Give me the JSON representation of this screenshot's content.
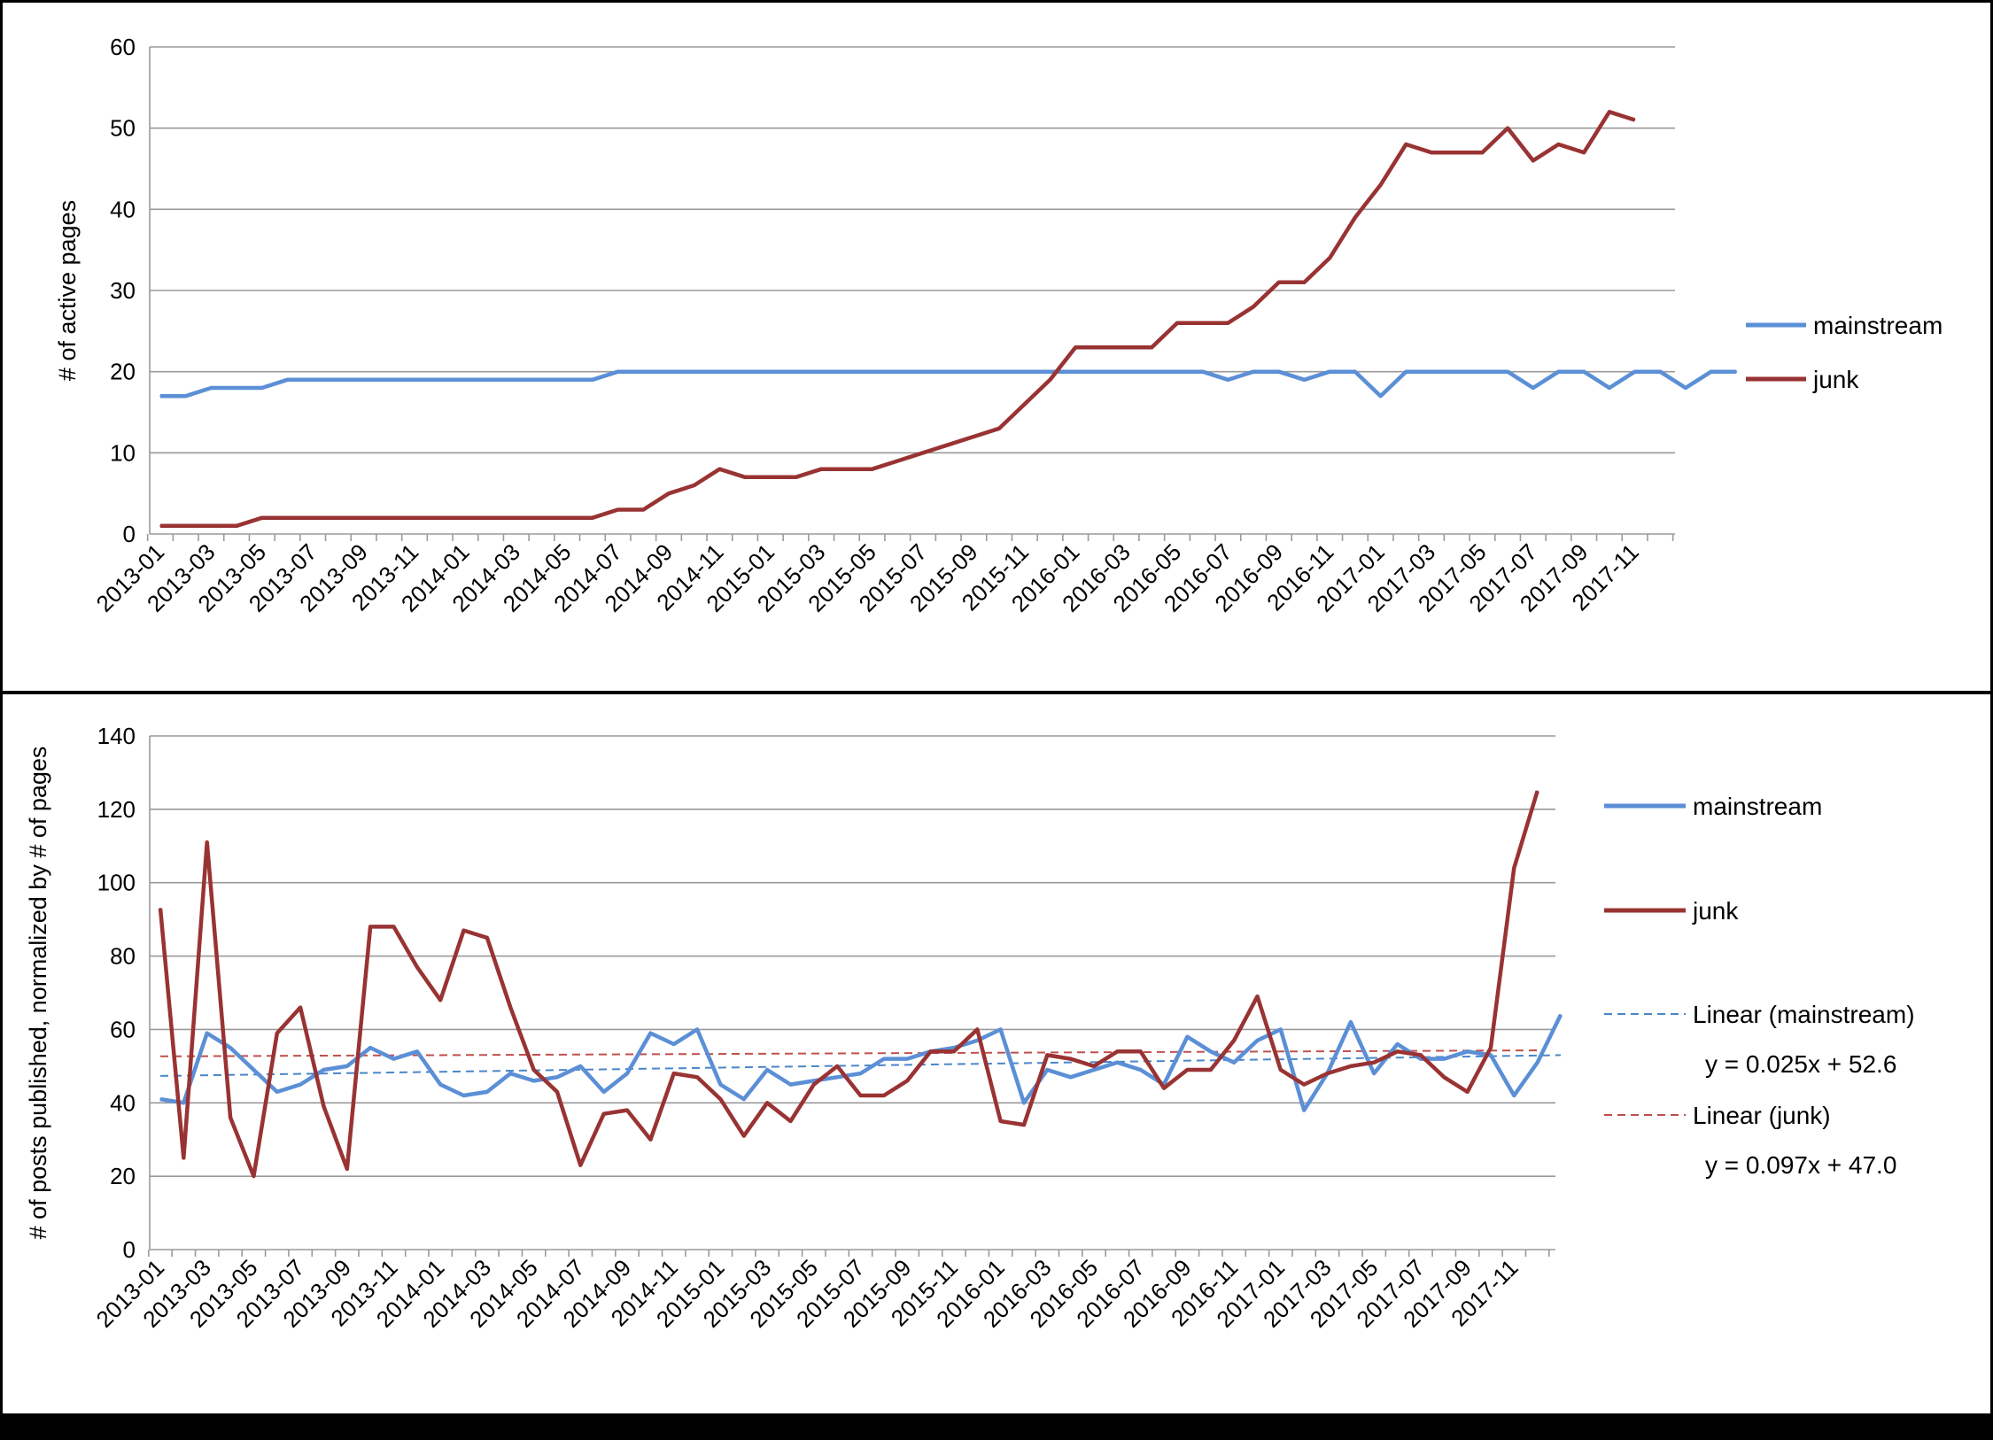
{
  "colors": {
    "mainstream": "#5b8fd6",
    "junk": "#993333",
    "trend_mainstream": "#4a86c8",
    "trend_junk": "#c0504d"
  },
  "chart_data": [
    {
      "type": "line",
      "ylabel": "# of active pages",
      "xlabel": "",
      "ylim": [
        0,
        60
      ],
      "yticks": [
        "0",
        "10",
        "20",
        "30",
        "40",
        "50",
        "60"
      ],
      "grid": true,
      "legend_position": "right",
      "x_tick_labels": [
        "2013-01",
        "2013-03",
        "2013-05",
        "2013-07",
        "2013-09",
        "2013-11",
        "2014-01",
        "2014-03",
        "2014-05",
        "2014-07",
        "2014-09",
        "2014-11",
        "2015-01",
        "2015-03",
        "2015-05",
        "2015-07",
        "2015-09",
        "2015-11",
        "2016-01",
        "2016-03",
        "2016-05",
        "2016-07",
        "2016-09",
        "2016-11",
        "2017-01",
        "2017-03",
        "2017-05",
        "2017-07",
        "2017-09",
        "2017-11"
      ],
      "series": [
        {
          "name": "mainstream",
          "values": [
            17,
            17,
            18,
            18,
            18,
            19,
            19,
            19,
            19,
            19,
            19,
            19,
            19,
            19,
            19,
            19,
            19,
            19,
            20,
            20,
            20,
            20,
            20,
            20,
            20,
            20,
            20,
            20,
            20,
            20,
            20,
            20,
            20,
            20,
            20,
            20,
            20,
            20,
            20,
            20,
            20,
            20,
            19,
            20,
            20,
            19,
            20,
            20,
            17,
            20,
            20,
            20,
            20,
            20,
            18,
            20,
            20,
            18,
            20,
            20,
            18,
            20,
            20
          ]
        },
        {
          "name": "junk",
          "values": [
            1,
            1,
            1,
            1,
            2,
            2,
            2,
            2,
            2,
            2,
            2,
            2,
            2,
            2,
            2,
            2,
            2,
            2,
            3,
            3,
            5,
            6,
            8,
            7,
            7,
            7,
            8,
            8,
            8,
            9,
            10,
            11,
            12,
            13,
            16,
            19,
            23,
            23,
            23,
            23,
            26,
            26,
            26,
            28,
            31,
            31,
            34,
            39,
            43,
            48,
            47,
            47,
            47,
            50,
            46,
            48,
            47,
            52,
            51
          ]
        }
      ]
    },
    {
      "type": "line",
      "ylabel": "# of posts published, normalized by # of pages",
      "xlabel": "",
      "ylim": [
        0,
        140
      ],
      "yticks": [
        "0",
        "20",
        "40",
        "60",
        "80",
        "100",
        "120",
        "140"
      ],
      "grid": true,
      "legend_position": "right",
      "x_tick_labels": [
        "2013-01",
        "2013-03",
        "2013-05",
        "2013-07",
        "2013-09",
        "2013-11",
        "2014-01",
        "2014-03",
        "2014-05",
        "2014-07",
        "2014-09",
        "2014-11",
        "2015-01",
        "2015-03",
        "2015-05",
        "2015-07",
        "2015-09",
        "2015-11",
        "2016-01",
        "2016-03",
        "2016-05",
        "2016-07",
        "2016-09",
        "2016-11",
        "2017-01",
        "2017-03",
        "2017-05",
        "2017-07",
        "2017-09",
        "2017-11"
      ],
      "series": [
        {
          "name": "mainstream",
          "values": [
            41,
            40,
            59,
            55,
            49,
            43,
            45,
            49,
            50,
            55,
            52,
            54,
            45,
            42,
            43,
            48,
            46,
            47,
            50,
            43,
            48,
            59,
            56,
            60,
            45,
            41,
            49,
            45,
            46,
            47,
            48,
            52,
            52,
            54,
            55,
            57,
            60,
            40,
            49,
            47,
            49,
            51,
            49,
            45,
            58,
            54,
            51,
            57,
            60,
            38,
            48,
            62,
            48,
            56,
            52,
            52,
            54,
            53,
            42,
            51,
            64
          ]
        },
        {
          "name": "junk",
          "values": [
            93,
            25,
            111,
            36,
            20,
            59,
            66,
            39,
            22,
            88,
            88,
            77,
            68,
            87,
            85,
            66,
            49,
            43,
            23,
            37,
            38,
            30,
            48,
            47,
            41,
            31,
            40,
            35,
            45,
            50,
            42,
            42,
            46,
            54,
            54,
            60,
            35,
            34,
            53,
            52,
            50,
            54,
            54,
            44,
            49,
            49,
            57,
            69,
            49,
            45,
            48,
            50,
            51,
            54,
            53,
            47,
            43,
            55,
            104,
            125
          ]
        }
      ],
      "trendlines": [
        {
          "name": "Linear (mainstream)",
          "equation": "y = 0.025x + 52.6"
        },
        {
          "name": "Linear (junk)",
          "equation": "y = 0.097x + 47.0"
        }
      ]
    }
  ]
}
